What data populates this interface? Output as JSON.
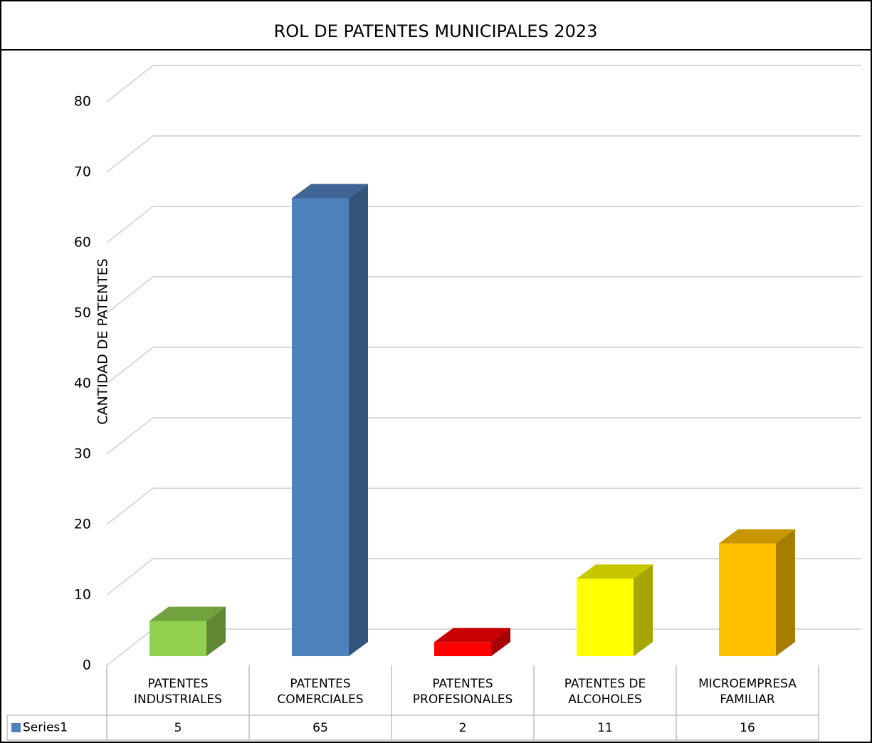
{
  "chart_data": {
    "type": "bar3d",
    "title": "ROL DE PATENTES MUNICIPALES 2023",
    "y_label": "CANTIDAD DE PATENTES",
    "categories": [
      "PATENTES INDUSTRIALES",
      "PATENTES COMERCIALES",
      "PATENTES PROFESIONALES",
      "PATENTES DE ALCOHOLES",
      "MICROEMPRESA FAMILIAR"
    ],
    "series": [
      {
        "name": "Series1",
        "color": "#4f81bd",
        "values": [
          5,
          65,
          2,
          11,
          16
        ]
      }
    ],
    "point_colors": [
      "#92d050",
      "#4f81bd",
      "#ff0000",
      "#ffff00",
      "#ffc000"
    ],
    "ylim": [
      0,
      80
    ],
    "yticks": [
      0,
      10,
      20,
      30,
      40,
      50,
      60,
      70,
      80
    ],
    "grid": true
  }
}
